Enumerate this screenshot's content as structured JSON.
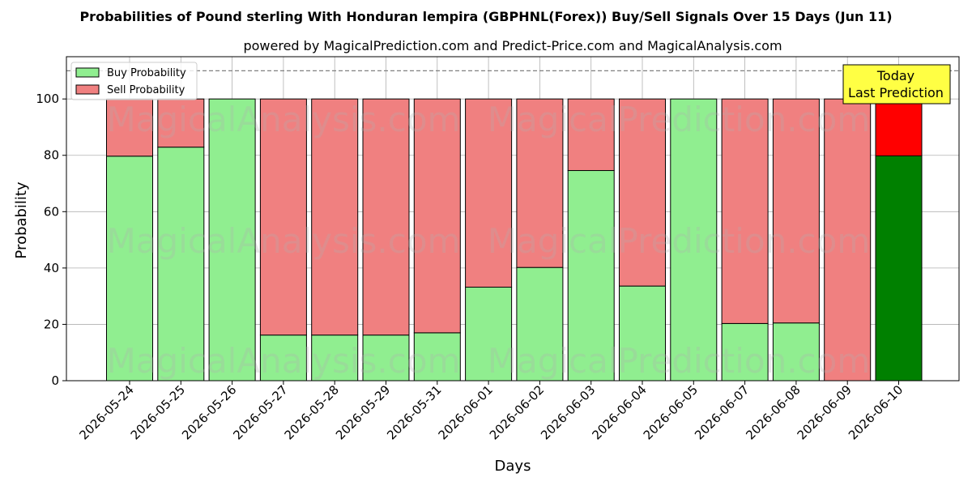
{
  "chart_data": {
    "type": "bar",
    "stacked": true,
    "title": "Probabilities of Pound sterling With Honduran lempira (GBPHNL(Forex)) Buy/Sell Signals Over 15 Days (Jun 11)",
    "subtitle": "powered by MagicalPrediction.com and Predict-Price.com and MagicalAnalysis.com",
    "xlabel": "Days",
    "ylabel": "Probability",
    "ylim": [
      0,
      115
    ],
    "yticks": [
      0,
      20,
      40,
      60,
      80,
      100
    ],
    "grid": true,
    "legend_position": "top-left",
    "categories": [
      "2026-05-24",
      "2026-05-25",
      "2026-05-26",
      "2026-05-27",
      "2026-05-28",
      "2026-05-29",
      "2026-05-31",
      "2026-06-01",
      "2026-06-02",
      "2026-06-03",
      "2026-06-04",
      "2026-06-05",
      "2026-06-07",
      "2026-06-08",
      "2026-06-09",
      "2026-06-10"
    ],
    "series": [
      {
        "name": "Buy Probability",
        "color": "#90ee90",
        "values": [
          79.7,
          82.9,
          100,
          16.2,
          16.2,
          16.2,
          17.0,
          33.2,
          40.2,
          74.6,
          33.6,
          100,
          20.3,
          20.5,
          0,
          79.8
        ]
      },
      {
        "name": "Sell Probability",
        "color": "#f08080",
        "values": [
          20.3,
          17.1,
          0,
          83.8,
          83.8,
          83.8,
          83.0,
          66.8,
          59.8,
          25.4,
          66.4,
          0,
          79.7,
          79.5,
          100,
          20.2
        ]
      }
    ],
    "highlight": {
      "index": 15,
      "buy_color": "#008000",
      "sell_color": "#ff0000"
    },
    "reference_line": {
      "y": 110,
      "style": "dashed",
      "color": "#808080"
    },
    "annotation": {
      "lines": [
        "Today",
        "Last Prediction"
      ],
      "background": "#ffff44"
    },
    "watermarks": [
      "MagicalAnalysis.com",
      "MagicalPrediction.com"
    ]
  }
}
